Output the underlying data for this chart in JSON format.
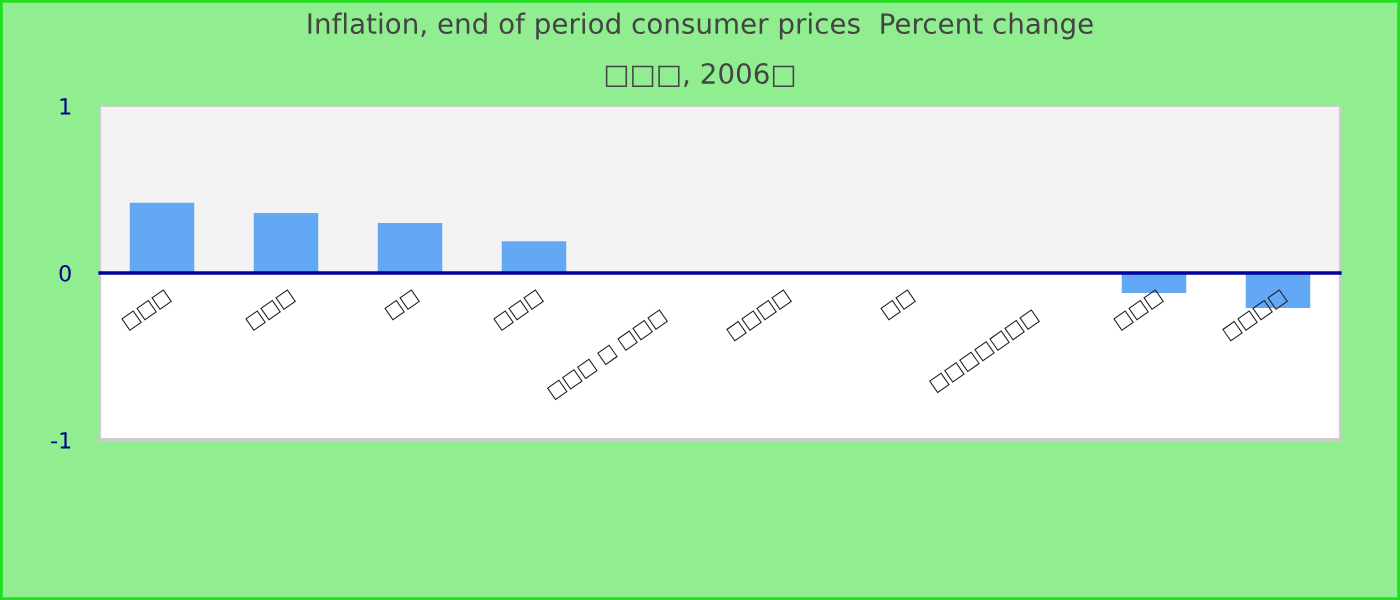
{
  "chart_data": {
    "type": "bar",
    "title": "Inflation, end of period consumer prices  Percent change",
    "subtitle": "□□□, 2006□",
    "categories": [
      "□□□",
      "□□□",
      "□□",
      "□□□",
      "□□□ □ □□□",
      "□□□□",
      "□□",
      "□□□□□□□",
      "□□□",
      "□□□□"
    ],
    "values": [
      0.42,
      0.36,
      0.3,
      0.19,
      0,
      0,
      0,
      0,
      -0.12,
      -0.21
    ],
    "color": "#63a8f5",
    "ylim": [
      -1,
      1
    ],
    "yticks": [
      -1,
      0,
      1
    ],
    "bands": [
      {
        "axis": "y",
        "from": 0,
        "to": 1,
        "color": "#f3f3f3"
      }
    ]
  }
}
